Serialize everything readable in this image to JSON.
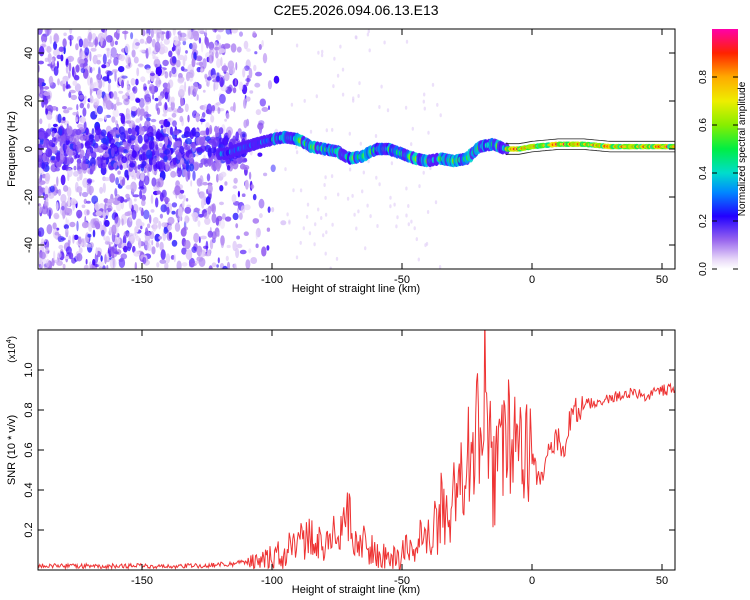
{
  "title": "C2E5.2026.094.06.13.E13",
  "chart_data": [
    {
      "type": "heatmap",
      "name": "spectrogram",
      "xlabel": "Height of straight line (km)",
      "ylabel": "Frequency (Hz)",
      "xlim": [
        -190,
        55
      ],
      "ylim": [
        -50,
        50
      ],
      "xticks": [
        -150,
        -100,
        -50,
        0,
        50
      ],
      "yticks": [
        -40,
        -20,
        0,
        20,
        40
      ],
      "colorbar": {
        "label": "Normalized spectral amplitude",
        "range": [
          0,
          1
        ],
        "ticks": [
          0.0,
          0.2,
          0.4,
          0.6,
          0.8
        ],
        "tick_labels": [
          "0.0",
          "0.2",
          "0.4",
          "0.6",
          "0.8"
        ]
      },
      "signal_track": {
        "x": [
          -118,
          -110,
          -100,
          -95,
          -90,
          -85,
          -80,
          -75,
          -70,
          -65,
          -60,
          -55,
          -50,
          -45,
          -40,
          -35,
          -30,
          -25,
          -20,
          -15,
          -10,
          -5,
          0,
          10,
          20,
          30,
          40,
          50,
          55
        ],
        "y": [
          -2,
          1,
          4,
          5,
          4,
          1,
          0,
          -1,
          -4,
          -3,
          0,
          0,
          -2,
          -4,
          -5,
          -4,
          -5,
          -4,
          1,
          2,
          0,
          0,
          1,
          2,
          2,
          1,
          1,
          1,
          1
        ]
      }
    },
    {
      "type": "line",
      "name": "snr",
      "xlabel": "Height of straight line (km)",
      "ylabel": "SNR (10 * v/v)",
      "scale_label": "(x10",
      "scale_exp": "4",
      "scale_close": ")",
      "xlim": [
        -190,
        55
      ],
      "ylim": [
        0,
        1.2
      ],
      "xticks": [
        -150,
        -100,
        -50,
        0,
        50
      ],
      "yticks": [
        0.2,
        0.4,
        0.6,
        0.8,
        1.0
      ],
      "ytick_labels": [
        "0.2",
        "0.4",
        "0.6",
        "0.8",
        "1.0"
      ],
      "color": "#ee3333",
      "series": [
        {
          "name": "SNR",
          "x": [
            -190,
            -170,
            -150,
            -130,
            -115,
            -110,
            -105,
            -100,
            -95,
            -90,
            -85,
            -80,
            -75,
            -72,
            -70,
            -68,
            -66,
            -63,
            -60,
            -55,
            -50,
            -47,
            -45,
            -42,
            -40,
            -37,
            -35,
            -32,
            -30,
            -27,
            -25,
            -23,
            -21,
            -19,
            -18,
            -17,
            -16,
            -15,
            -13,
            -11,
            -9,
            -7,
            -5,
            -3,
            -1,
            0,
            2,
            4,
            6,
            8,
            10,
            12,
            14,
            16,
            18,
            20,
            24,
            28,
            32,
            36,
            40,
            44,
            48,
            52,
            55
          ],
          "y": [
            0.02,
            0.02,
            0.02,
            0.02,
            0.03,
            0.04,
            0.05,
            0.06,
            0.09,
            0.14,
            0.16,
            0.13,
            0.18,
            0.22,
            0.33,
            0.12,
            0.18,
            0.12,
            0.08,
            0.06,
            0.08,
            0.12,
            0.1,
            0.18,
            0.11,
            0.24,
            0.32,
            0.28,
            0.42,
            0.45,
            0.6,
            0.5,
            0.78,
            0.62,
            1.02,
            0.5,
            0.8,
            0.45,
            0.48,
            0.6,
            0.66,
            0.62,
            0.65,
            0.64,
            0.62,
            0.6,
            0.48,
            0.45,
            0.56,
            0.62,
            0.66,
            0.55,
            0.72,
            0.8,
            0.78,
            0.82,
            0.84,
            0.85,
            0.87,
            0.88,
            0.88,
            0.87,
            0.89,
            0.9,
            0.9
          ]
        }
      ]
    }
  ]
}
